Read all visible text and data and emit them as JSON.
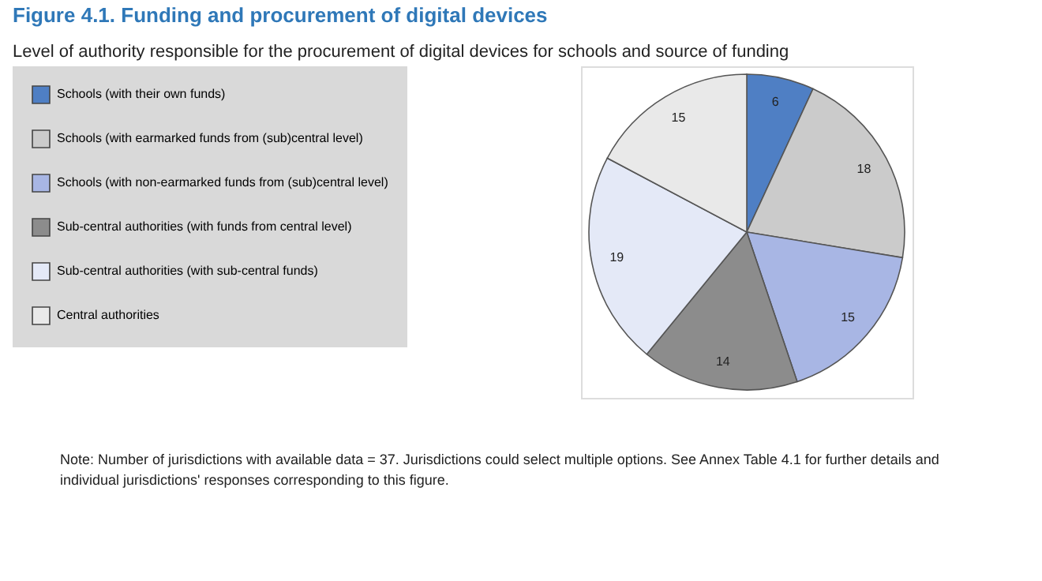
{
  "chart_data": {
    "type": "pie",
    "title": "Figure 4.1. Funding and procurement of digital devices",
    "subtitle": "Level of authority responsible for the procurement of digital devices for schools and source of funding",
    "categories": [
      "Schools (with their own funds)",
      "Schools (with earmarked funds from (sub)central level)",
      "Schools (with non-earmarked funds from (sub)central level)",
      "Sub-central authorities (with funds from central level)",
      "Sub-central authorities (with sub-central funds)",
      "Central authorities"
    ],
    "values": [
      6,
      18,
      15,
      14,
      19,
      15
    ],
    "colors": [
      "#4f7fc4",
      "#cbcbcb",
      "#a8b6e4",
      "#8c8c8c",
      "#e4e9f7",
      "#e9e9e9"
    ],
    "data_labels": true,
    "legend": "left",
    "annotations": [
      "Note: Number of jurisdictions with available data = 37. Jurisdictions could select multiple options. See Annex Table 4.1 for further details and individual jurisdictions' responses corresponding to this figure."
    ]
  }
}
